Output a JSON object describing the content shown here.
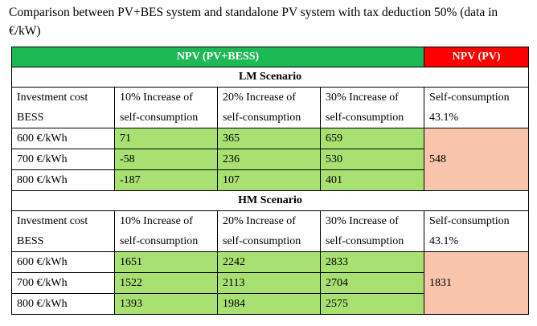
{
  "caption": "Comparison between PV+BES system and standalone PV system with tax deduction 50% (data in €/kW)",
  "colors": {
    "pvbess_header": "#1db954",
    "pv_header": "#ff0000",
    "green_cell": "#a9e072",
    "pv_cell": "#f8c4ab"
  },
  "header": {
    "pvbess": "NPV (PV+BESS)",
    "pv": "NPV (PV)"
  },
  "col_headers": {
    "investment": [
      "Investment cost",
      "BESS"
    ],
    "inc10": [
      "10% Increase of",
      "self-consumption"
    ],
    "inc20": [
      "20% Increase of",
      "self-consumption"
    ],
    "inc30": [
      "30% Increase of",
      "self-consumption"
    ],
    "selfcons": [
      "Self-consumption",
      "43.1%"
    ]
  },
  "scenarios": [
    {
      "title": "LM Scenario",
      "rows": [
        {
          "cost": "600 €/kWh",
          "v10": "71",
          "v20": "365",
          "v30": "659"
        },
        {
          "cost": "700 €/kWh",
          "v10": "-58",
          "v20": "236",
          "v30": "530"
        },
        {
          "cost": "800 €/kWh",
          "v10": "-187",
          "v20": "107",
          "v30": "401"
        }
      ],
      "pv": "548"
    },
    {
      "title": "HM Scenario",
      "rows": [
        {
          "cost": "600 €/kWh",
          "v10": "1651",
          "v20": "2242",
          "v30": "2833"
        },
        {
          "cost": "700 €/kWh",
          "v10": "1522",
          "v20": "2113",
          "v30": "2704"
        },
        {
          "cost": "800 €/kWh",
          "v10": "1393",
          "v20": "1984",
          "v30": "2575"
        }
      ],
      "pv": "1831"
    }
  ]
}
